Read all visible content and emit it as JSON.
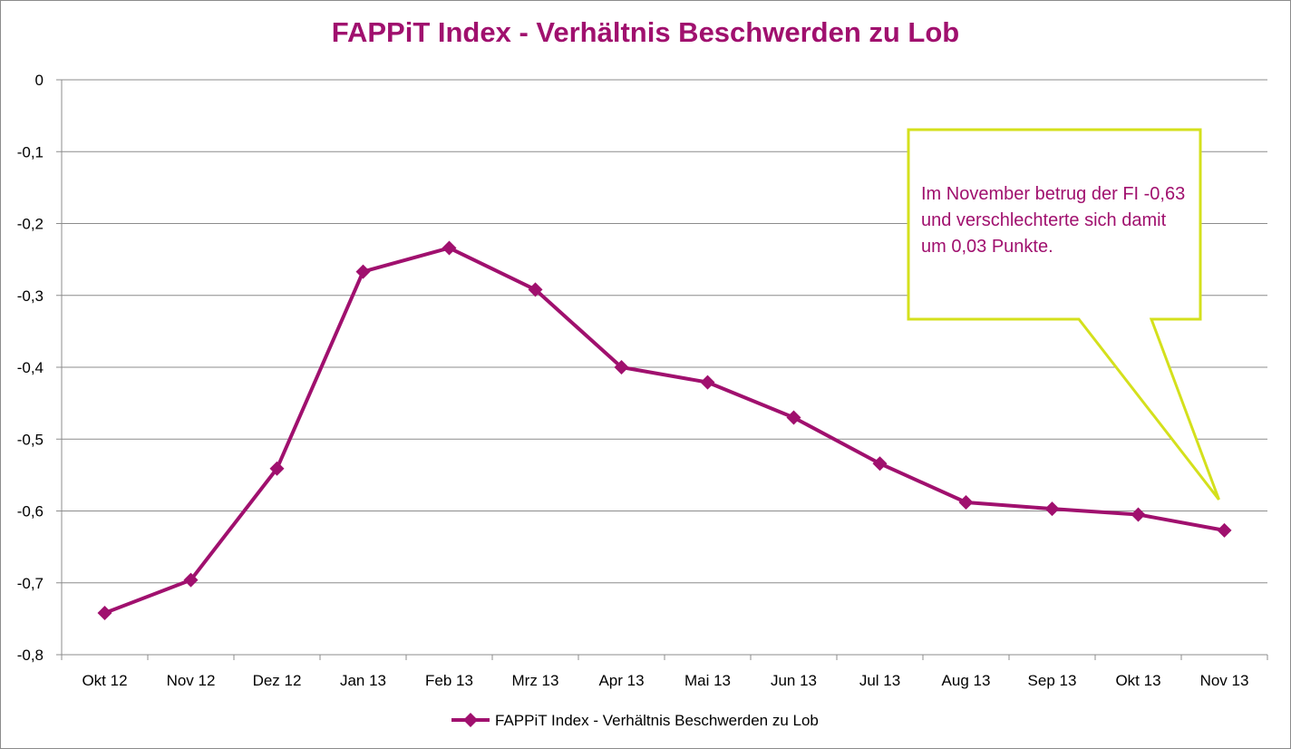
{
  "chart_data": {
    "type": "line",
    "title": "FAPPiT Index - Verhältnis Beschwerden zu Lob",
    "categories": [
      "Okt 12",
      "Nov 12",
      "Dez 12",
      "Jan 13",
      "Feb 13",
      "Mrz 13",
      "Apr 13",
      "Mai 13",
      "Jun 13",
      "Jul 13",
      "Aug 13",
      "Sep 13",
      "Okt 13",
      "Nov 13"
    ],
    "series": [
      {
        "name": "FAPPiT Index - Verhältnis Beschwerden zu Lob",
        "values": [
          -0.742,
          -0.696,
          -0.541,
          -0.267,
          -0.234,
          -0.292,
          -0.4,
          -0.421,
          -0.47,
          -0.534,
          -0.588,
          -0.597,
          -0.605,
          -0.627
        ],
        "color": "#a0106e"
      }
    ],
    "ylim": [
      -0.8,
      0
    ],
    "yticks": [
      "0",
      "-0,1",
      "-0,2",
      "-0,3",
      "-0,4",
      "-0,5",
      "-0,6",
      "-0,7",
      "-0,8"
    ],
    "grid": true,
    "legend": "bottom",
    "annotation": {
      "text": "Im November betrug der FI -0,63 und verschlechterte sich damit um 0,03 Punkte.",
      "border_color": "#d4e01c",
      "text_color": "#a0106e"
    }
  }
}
